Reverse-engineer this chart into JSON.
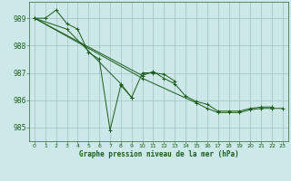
{
  "title": "Graphe pression niveau de la mer (hPa)",
  "background_color": "#cce8e8",
  "grid_color": "#a0c0c0",
  "line_color": "#1a5c1a",
  "spine_color": "#4a7a4a",
  "xlim": [
    -0.5,
    23.5
  ],
  "ylim": [
    984.5,
    989.6
  ],
  "yticks": [
    985,
    986,
    987,
    988,
    989
  ],
  "xticks": [
    0,
    1,
    2,
    3,
    4,
    5,
    6,
    7,
    8,
    9,
    10,
    11,
    12,
    13,
    14,
    15,
    16,
    17,
    18,
    19,
    20,
    21,
    22,
    23
  ],
  "series_data": {
    "line1": {
      "x": [
        0,
        1,
        2,
        3,
        4,
        5,
        6,
        7,
        8,
        9
      ],
      "y": [
        989.0,
        989.0,
        989.3,
        988.8,
        988.6,
        987.75,
        987.5,
        984.9,
        986.55,
        986.1
      ]
    },
    "line2": {
      "x": [
        0,
        3,
        8,
        9,
        10,
        11,
        12,
        13
      ],
      "y": [
        989.0,
        988.6,
        986.6,
        986.1,
        987.0,
        987.0,
        986.95,
        986.7
      ]
    },
    "line3": {
      "x": [
        0,
        10,
        11,
        12,
        13,
        14,
        15,
        16,
        17,
        18,
        19,
        20,
        21,
        22
      ],
      "y": [
        989.0,
        986.9,
        987.05,
        986.8,
        986.6,
        986.15,
        985.95,
        985.85,
        985.6,
        985.6,
        985.6,
        985.7,
        985.75,
        985.75
      ]
    },
    "line4": {
      "x": [
        0,
        10,
        15,
        16,
        17,
        18,
        19,
        20,
        21,
        22,
        23
      ],
      "y": [
        989.0,
        986.8,
        985.9,
        985.7,
        985.55,
        985.55,
        985.55,
        985.65,
        985.7,
        985.7,
        985.7
      ]
    }
  },
  "ytick_fontsize": 5.5,
  "xtick_fontsize": 4.5,
  "xlabel_fontsize": 5.5,
  "marker_size": 3.0,
  "line_width": 0.7
}
